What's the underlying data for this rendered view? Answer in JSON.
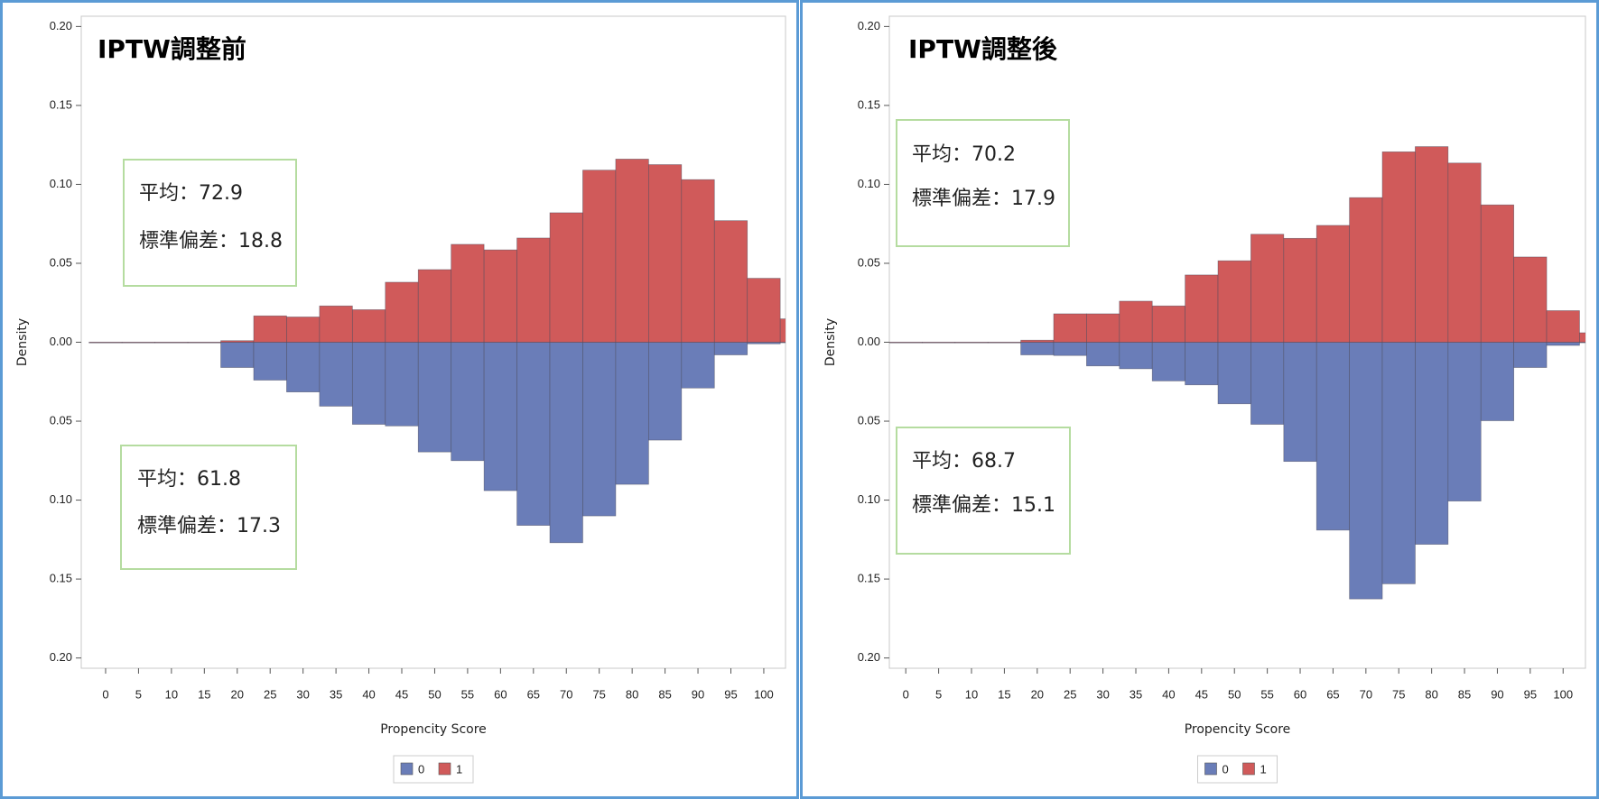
{
  "chart_data": [
    {
      "type": "mirror-histogram",
      "title": "IPTW調整前",
      "x_label": "Propencity Score",
      "y_label": "Density",
      "bins": [
        -2.5,
        2.5,
        7.5,
        12.5,
        17.5,
        22.5,
        27.5,
        32.5,
        37.5,
        42.5,
        47.5,
        52.5,
        57.5,
        62.5,
        67.5,
        72.5,
        77.5,
        82.5,
        87.5,
        92.5,
        97.5,
        102.5,
        107.5
      ],
      "series": [
        {
          "name": "0",
          "color": "#6a7db8",
          "values": [
            0,
            0,
            0,
            0,
            -0.016,
            -0.024,
            -0.0315,
            -0.0405,
            -0.052,
            -0.053,
            -0.0695,
            -0.075,
            -0.094,
            -0.116,
            -0.127,
            -0.11,
            -0.09,
            -0.062,
            -0.029,
            -0.008,
            -0.001,
            0
          ]
        },
        {
          "name": "1",
          "color": "#d05a5a",
          "values": [
            0,
            0,
            0,
            0,
            0.001,
            0.0167,
            0.016,
            0.023,
            0.0206,
            0.038,
            0.046,
            0.062,
            0.0585,
            0.066,
            0.082,
            0.109,
            0.116,
            0.1125,
            0.103,
            0.077,
            0.0405,
            0.0148
          ]
        }
      ],
      "xlim": [
        -3.7,
        103.3
      ],
      "xticks": [
        0,
        5,
        10,
        15,
        20,
        25,
        30,
        35,
        40,
        45,
        50,
        55,
        60,
        65,
        70,
        75,
        80,
        85,
        90,
        95,
        100
      ],
      "ylim": [
        -0.2065,
        0.2065
      ],
      "yticks": [
        {
          "value": 0.2,
          "label": "0.20"
        },
        0.15,
        {
          "value": 0.1,
          "label": "0.10"
        },
        0.05,
        {
          "value": 0,
          "label": "0.00"
        },
        {
          "value": -0.05,
          "label": "0.05"
        },
        {
          "value": -0.1,
          "label": "0.10"
        },
        {
          "value": -0.15,
          "label": "0.15"
        },
        {
          "value": -0.2,
          "label": "0.20"
        }
      ],
      "annotations": [
        {
          "lines": [
            "平均：72.9",
            "標準偏差：18.8"
          ]
        },
        {
          "lines": [
            "平均：61.8",
            "標準偏差：17.3"
          ]
        }
      ]
    },
    {
      "type": "mirror-histogram",
      "title": "IPTW調整後",
      "x_label": "Propencity Score",
      "y_label": "Density",
      "bins": [
        -2.5,
        2.5,
        7.5,
        12.5,
        17.5,
        22.5,
        27.5,
        32.5,
        37.5,
        42.5,
        47.5,
        52.5,
        57.5,
        62.5,
        67.5,
        72.5,
        77.5,
        82.5,
        87.5,
        92.5,
        97.5,
        102.5,
        107.5
      ],
      "series": [
        {
          "name": "0",
          "color": "#6a7db8",
          "values": [
            0,
            0,
            0,
            0,
            -0.008,
            -0.0084,
            -0.015,
            -0.0168,
            -0.0245,
            -0.027,
            -0.039,
            -0.052,
            -0.0755,
            -0.119,
            -0.1626,
            -0.153,
            -0.128,
            -0.1006,
            -0.0497,
            -0.016,
            -0.002,
            0
          ]
        },
        {
          "name": "1",
          "color": "#d05a5a",
          "values": [
            0,
            0,
            0,
            0,
            0.0013,
            0.018,
            0.018,
            0.026,
            0.023,
            0.0426,
            0.0516,
            0.0684,
            0.0658,
            0.074,
            0.0916,
            0.1206,
            0.1239,
            0.1135,
            0.087,
            0.054,
            0.02,
            0.006
          ]
        }
      ],
      "xlim": [
        -2.5,
        103.4
      ],
      "xticks": [
        0,
        5,
        10,
        15,
        20,
        25,
        30,
        35,
        40,
        45,
        50,
        55,
        60,
        65,
        70,
        75,
        80,
        85,
        90,
        95,
        100
      ],
      "ylim": [
        -0.2065,
        0.2065
      ],
      "yticks": [
        {
          "value": 0.2,
          "label": "0.20"
        },
        0.15,
        {
          "value": 0.1,
          "label": "0.10"
        },
        0.05,
        {
          "value": 0,
          "label": "0.00"
        },
        {
          "value": -0.05,
          "label": "0.05"
        },
        {
          "value": -0.1,
          "label": "0.10"
        },
        {
          "value": -0.15,
          "label": "0.15"
        },
        {
          "value": -0.2,
          "label": "0.20"
        }
      ],
      "annotations": [
        {
          "lines": [
            "平均：70.2",
            "標準偏差：17.9"
          ]
        },
        {
          "lines": [
            "平均：68.7",
            "標準偏差：15.1"
          ]
        }
      ]
    }
  ]
}
